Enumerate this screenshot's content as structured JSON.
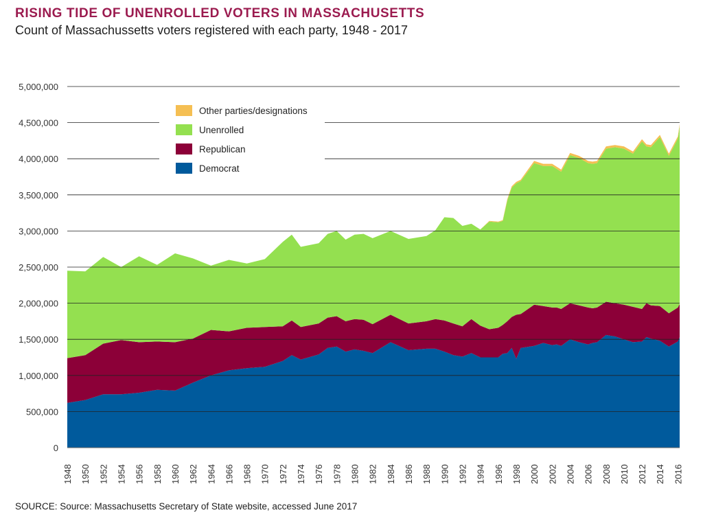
{
  "title": "RISING TIDE OF UNENROLLED VOTERS IN MASSACHUSETTS",
  "subtitle": "Count of Massachussetts voters registered with each party, 1948 - 2017",
  "source": "SOURCE: Source: Massachusetts Secretary of State website, accessed June 2017",
  "colors": {
    "Democrat": "#005a9c",
    "Republican": "#8c0038",
    "Unenrolled": "#94e050",
    "Other": "#f5bf53",
    "grid": "#222222"
  },
  "chart_data": {
    "type": "area",
    "stacked": true,
    "ylim": [
      0,
      5000000
    ],
    "xlim": [
      1948,
      2016.2
    ],
    "y_ticks": [
      0,
      500000,
      1000000,
      1500000,
      2000000,
      2500000,
      3000000,
      3500000,
      4000000,
      4500000,
      5000000
    ],
    "y_tick_labels": [
      "0",
      "500,000",
      "1,000,000",
      "1,500,000",
      "2,000,000",
      "2,500,000",
      "3,000,000",
      "3,500,000",
      "4,000,000",
      "4,500,000",
      "5,000,000"
    ],
    "x_ticks": [
      1948,
      1950,
      1952,
      1954,
      1956,
      1958,
      1960,
      1962,
      1964,
      1966,
      1968,
      1970,
      1972,
      1974,
      1976,
      1978,
      1980,
      1982,
      1984,
      1986,
      1988,
      1990,
      1992,
      1994,
      1996,
      1998,
      2000,
      2002,
      2004,
      2006,
      2008,
      2010,
      2012,
      2014,
      2016
    ],
    "legend_position": "top-left",
    "legend": [
      "Other parties/designations",
      "Unenrolled",
      "Republican",
      "Democrat"
    ],
    "grid": true,
    "x": [
      1948,
      1950,
      1952,
      1954,
      1956,
      1958,
      1960,
      1962,
      1964,
      1966,
      1968,
      1970,
      1972,
      1973,
      1974,
      1976,
      1977,
      1978,
      1979,
      1980,
      1981,
      1982,
      1984,
      1986,
      1988,
      1989,
      1990,
      1991,
      1992,
      1993,
      1994,
      1995,
      1996,
      1996.5,
      1997,
      1997.5,
      1998,
      1998.5,
      2000,
      2001,
      2002,
      2002.5,
      2003,
      2004,
      2005,
      2006,
      2006.5,
      2007,
      2008,
      2009,
      2010,
      2011,
      2012,
      2012.5,
      2013,
      2014,
      2015,
      2016,
      2016.2
    ],
    "series": [
      {
        "name": "Democrat",
        "values": [
          620000,
          660000,
          740000,
          740000,
          760000,
          800000,
          790000,
          900000,
          1000000,
          1070000,
          1100000,
          1120000,
          1200000,
          1280000,
          1220000,
          1290000,
          1380000,
          1400000,
          1330000,
          1360000,
          1340000,
          1310000,
          1460000,
          1350000,
          1370000,
          1370000,
          1330000,
          1280000,
          1260000,
          1310000,
          1250000,
          1250000,
          1250000,
          1300000,
          1310000,
          1380000,
          1230000,
          1380000,
          1410000,
          1450000,
          1420000,
          1430000,
          1410000,
          1500000,
          1460000,
          1430000,
          1450000,
          1460000,
          1560000,
          1540000,
          1500000,
          1460000,
          1470000,
          1530000,
          1510000,
          1480000,
          1400000,
          1470000,
          1530000
        ]
      },
      {
        "name": "Republican",
        "values": [
          620000,
          620000,
          700000,
          750000,
          700000,
          670000,
          670000,
          610000,
          630000,
          540000,
          560000,
          550000,
          480000,
          480000,
          450000,
          430000,
          420000,
          420000,
          420000,
          420000,
          430000,
          400000,
          380000,
          370000,
          380000,
          410000,
          430000,
          440000,
          420000,
          470000,
          440000,
          390000,
          410000,
          400000,
          440000,
          430000,
          610000,
          470000,
          570000,
          510000,
          520000,
          510000,
          510000,
          500000,
          510000,
          510000,
          480000,
          480000,
          460000,
          460000,
          480000,
          490000,
          450000,
          470000,
          460000,
          480000,
          460000,
          470000,
          460000
        ]
      },
      {
        "name": "Unenrolled",
        "values": [
          1210000,
          1160000,
          1200000,
          1010000,
          1190000,
          1060000,
          1230000,
          1110000,
          890000,
          990000,
          890000,
          940000,
          1170000,
          1190000,
          1110000,
          1110000,
          1160000,
          1180000,
          1130000,
          1170000,
          1190000,
          1190000,
          1160000,
          1170000,
          1180000,
          1230000,
          1430000,
          1460000,
          1390000,
          1320000,
          1330000,
          1490000,
          1460000,
          1440000,
          1670000,
          1790000,
          1820000,
          1840000,
          1960000,
          1940000,
          1960000,
          1920000,
          1900000,
          2050000,
          2040000,
          2000000,
          2000000,
          2000000,
          2120000,
          2160000,
          2160000,
          2120000,
          2320000,
          2170000,
          2190000,
          2340000,
          2180000,
          2340000,
          2460000
        ]
      },
      {
        "name": "Other parties/designations",
        "values": [
          0,
          0,
          0,
          0,
          0,
          0,
          0,
          0,
          0,
          0,
          0,
          0,
          0,
          0,
          0,
          0,
          0,
          0,
          0,
          0,
          0,
          0,
          0,
          0,
          0,
          0,
          0,
          0,
          0,
          0,
          0,
          10000,
          10000,
          10000,
          20000,
          20000,
          20000,
          20000,
          30000,
          30000,
          30000,
          30000,
          30000,
          30000,
          30000,
          30000,
          30000,
          30000,
          30000,
          30000,
          30000,
          30000,
          30000,
          30000,
          30000,
          30000,
          30000,
          30000,
          30000
        ]
      }
    ]
  }
}
